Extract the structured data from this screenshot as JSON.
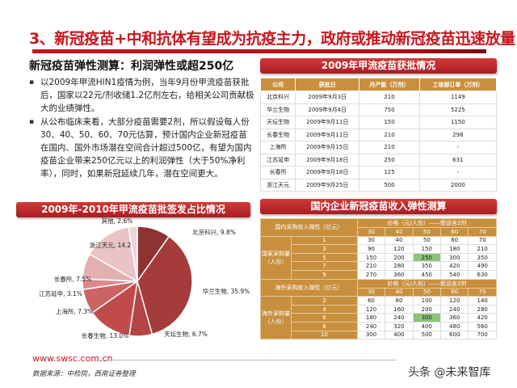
{
  "title": "3、新冠疫苗+中和抗体有望成为抗疫主力，政府或推动新冠疫苗迅速放量",
  "left": {
    "heading": "新冠疫苗弹性测算：利润弹性或超250亿",
    "bullets": [
      "以2009年甲流HIN1疫情为例，当年9月份甲流疫苗获批后，国家以22元/剂收储1.2亿剂左右，给相关公司贡献极大的业绩弹性。",
      "从公布临床来看，大部分疫苗需要2剂，所以假设每人份30、40、50、60、70元估算，预计国内企业新冠疫苗在国内、国外市场潜在空间合计超过500亿，有望为国内疫苗企业带来250亿元以上的利润弹性（大于50%净利率），同时，如果新冠延续几年，潜在空间更大。"
    ],
    "chart_banner": "2009年-2010年甲流疫苗批签发占比情况"
  },
  "chart_data": {
    "type": "pie",
    "slices": [
      {
        "label": "北京科兴, 9.8%",
        "value": 9.8,
        "color": "#8e3232"
      },
      {
        "label": "华兰生物, 35.9%",
        "value": 35.9,
        "color": "#a43c3c"
      },
      {
        "label": "天坛生物, 6.7%",
        "value": 6.7,
        "color": "#b54444"
      },
      {
        "label": "长春生物, 13.0%",
        "value": 13.0,
        "color": "#c14b4b"
      },
      {
        "label": "上海所, 7.3%",
        "value": 7.3,
        "color": "#cc6464"
      },
      {
        "label": "江苏延申, 3.1%",
        "value": 3.1,
        "color": "#d88a8a"
      },
      {
        "label": "长春所, 7.5%",
        "value": 7.5,
        "color": "#e3b0b0"
      },
      {
        "label": "浙江天元, 14.2%",
        "value": 14.2,
        "color": "#e8c4c4"
      },
      {
        "label": "其他, 2.6%",
        "value": 2.6,
        "color": "#eed6d6"
      }
    ]
  },
  "table1": {
    "banner": "2009年甲流疫苗获批情况",
    "headers": [
      "公司",
      "获批日",
      "月产能（万剂）",
      "工信部订单（万剂）"
    ],
    "rows": [
      [
        "北京科兴",
        "2009年9月3日",
        "210",
        "1149"
      ],
      [
        "华兰生物",
        "2009年9月4日",
        "750",
        "5225"
      ],
      [
        "天坛生物",
        "2009年9月11日",
        "150",
        "1150"
      ],
      [
        "长春生物",
        "2009年9月11日",
        "210",
        "298"
      ],
      [
        "上海所",
        "2009年9月15日",
        "210",
        "-"
      ],
      [
        "江苏延申",
        "2009年9月18日",
        "250",
        "631"
      ],
      [
        "长春所",
        "2009年9月18日",
        "125",
        "-"
      ],
      [
        "浙江天元",
        "2009年9月25日",
        "500",
        "2000"
      ]
    ]
  },
  "table2": {
    "banner": "国内企业新冠疫苗收入弹性测算",
    "domestic": {
      "title": "国内采购收入弹性（亿元）",
      "price_label": "价格（元/人份）——假设含2剂",
      "prices": [
        "30",
        "40",
        "50",
        "60",
        "70"
      ],
      "qty_label": "国家采购量（人份）",
      "rows": [
        [
          "1",
          "30",
          "40",
          "50",
          "60",
          "70"
        ],
        [
          "3",
          "90",
          "120",
          "150",
          "180",
          "210"
        ],
        [
          "5",
          "150",
          "200",
          "250",
          "300",
          "350"
        ],
        [
          "7",
          "210",
          "280",
          "350",
          "420",
          "490"
        ],
        [
          "9",
          "270",
          "360",
          "450",
          "540",
          "630"
        ]
      ]
    },
    "overseas": {
      "title": "海外采购收入弹性（亿元）",
      "price_label": "价格（元/人份）——假设含2剂",
      "prices": [
        "30",
        "40",
        "50",
        "60",
        "70"
      ],
      "qty_label": "海外采购量（人份）",
      "rows": [
        [
          "2",
          "60",
          "80",
          "100",
          "120",
          "140"
        ],
        [
          "4",
          "120",
          "160",
          "200",
          "240",
          "280"
        ],
        [
          "6",
          "180",
          "240",
          "300",
          "360",
          "420"
        ],
        [
          "8",
          "240",
          "320",
          "400",
          "480",
          "560"
        ],
        [
          "10",
          "300",
          "400",
          "500",
          "600",
          "700"
        ]
      ]
    }
  },
  "footer": {
    "url": "www.swsc.com.cn",
    "source": "数据来源：中检院，西南证券整理",
    "watermark": "头条 @未来智库"
  }
}
